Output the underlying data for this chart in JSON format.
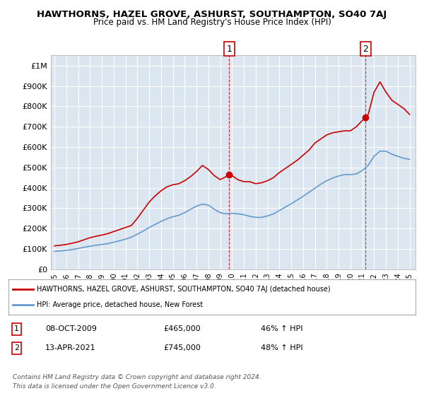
{
  "title": "HAWTHORNS, HAZEL GROVE, ASHURST, SOUTHAMPTON, SO40 7AJ",
  "subtitle": "Price paid vs. HM Land Registry's House Price Index (HPI)",
  "ylabel_ticks": [
    "£0",
    "£100K",
    "£200K",
    "£300K",
    "£400K",
    "£500K",
    "£600K",
    "£700K",
    "£800K",
    "£900K",
    "£1M"
  ],
  "ytick_values": [
    0,
    100000,
    200000,
    300000,
    400000,
    500000,
    600000,
    700000,
    800000,
    900000,
    1000000
  ],
  "ylim": [
    0,
    1050000
  ],
  "xlim_start": 1995,
  "xlim_end": 2025.5,
  "xticks": [
    1995,
    1996,
    1997,
    1998,
    1999,
    2000,
    2001,
    2002,
    2003,
    2004,
    2005,
    2006,
    2007,
    2008,
    2009,
    2010,
    2011,
    2012,
    2013,
    2014,
    2015,
    2016,
    2017,
    2018,
    2019,
    2020,
    2021,
    2022,
    2023,
    2024,
    2025
  ],
  "background_color": "#ffffff",
  "plot_bg_color": "#dce6f0",
  "grid_color": "#ffffff",
  "red_line_color": "#cc0000",
  "blue_line_color": "#6699cc",
  "marker1_x": 2009.77,
  "marker1_y": 465000,
  "marker1_label": "1",
  "marker1_date": "08-OCT-2009",
  "marker1_price": "£465,000",
  "marker1_hpi": "46% ↑ HPI",
  "marker2_x": 2021.28,
  "marker2_y": 745000,
  "marker2_label": "2",
  "marker2_date": "13-APR-2021",
  "marker2_price": "£745,000",
  "marker2_hpi": "48% ↑ HPI",
  "legend_red_label": "HAWTHORNS, HAZEL GROVE, ASHURST, SOUTHAMPTON, SO40 7AJ (detached house)",
  "legend_blue_label": "HPI: Average price, detached house, New Forest",
  "footer1": "Contains HM Land Registry data © Crown copyright and database right 2024.",
  "footer2": "This data is licensed under the Open Government Licence v3.0.",
  "red_x": [
    1995.0,
    1995.5,
    1996.0,
    1996.5,
    1997.0,
    1997.5,
    1998.0,
    1998.5,
    1999.0,
    1999.5,
    2000.0,
    2000.5,
    2001.0,
    2001.5,
    2002.0,
    2002.5,
    2003.0,
    2003.5,
    2004.0,
    2004.5,
    2005.0,
    2005.5,
    2006.0,
    2006.5,
    2007.0,
    2007.5,
    2008.0,
    2008.5,
    2009.0,
    2009.5,
    2009.77,
    2010.0,
    2010.5,
    2011.0,
    2011.5,
    2012.0,
    2012.5,
    2013.0,
    2013.5,
    2014.0,
    2014.5,
    2015.0,
    2015.5,
    2016.0,
    2016.5,
    2017.0,
    2017.5,
    2018.0,
    2018.5,
    2019.0,
    2019.5,
    2020.0,
    2020.5,
    2021.0,
    2021.28,
    2021.5,
    2022.0,
    2022.5,
    2023.0,
    2023.5,
    2024.0,
    2024.5,
    2025.0
  ],
  "red_y": [
    115000,
    118000,
    122000,
    128000,
    135000,
    145000,
    155000,
    162000,
    168000,
    175000,
    185000,
    195000,
    205000,
    215000,
    250000,
    290000,
    330000,
    360000,
    385000,
    405000,
    415000,
    420000,
    435000,
    455000,
    480000,
    510000,
    490000,
    460000,
    440000,
    455000,
    465000,
    460000,
    440000,
    430000,
    430000,
    420000,
    425000,
    435000,
    450000,
    475000,
    495000,
    515000,
    535000,
    560000,
    585000,
    620000,
    640000,
    660000,
    670000,
    675000,
    680000,
    680000,
    700000,
    730000,
    745000,
    760000,
    870000,
    920000,
    870000,
    830000,
    810000,
    790000,
    760000
  ],
  "blue_x": [
    1995.0,
    1995.5,
    1996.0,
    1996.5,
    1997.0,
    1997.5,
    1998.0,
    1998.5,
    1999.0,
    1999.5,
    2000.0,
    2000.5,
    2001.0,
    2001.5,
    2002.0,
    2002.5,
    2003.0,
    2003.5,
    2004.0,
    2004.5,
    2005.0,
    2005.5,
    2006.0,
    2006.5,
    2007.0,
    2007.5,
    2008.0,
    2008.5,
    2009.0,
    2009.5,
    2010.0,
    2010.5,
    2011.0,
    2011.5,
    2012.0,
    2012.5,
    2013.0,
    2013.5,
    2014.0,
    2014.5,
    2015.0,
    2015.5,
    2016.0,
    2016.5,
    2017.0,
    2017.5,
    2018.0,
    2018.5,
    2019.0,
    2019.5,
    2020.0,
    2020.5,
    2021.0,
    2021.5,
    2022.0,
    2022.5,
    2023.0,
    2023.5,
    2024.0,
    2024.5,
    2025.0
  ],
  "blue_y": [
    88000,
    90000,
    93000,
    97000,
    102000,
    108000,
    113000,
    118000,
    122000,
    126000,
    133000,
    140000,
    148000,
    158000,
    172000,
    188000,
    205000,
    220000,
    235000,
    248000,
    258000,
    265000,
    278000,
    295000,
    310000,
    320000,
    315000,
    295000,
    278000,
    272000,
    275000,
    272000,
    268000,
    260000,
    255000,
    255000,
    262000,
    272000,
    288000,
    305000,
    322000,
    340000,
    358000,
    378000,
    398000,
    418000,
    435000,
    448000,
    458000,
    465000,
    465000,
    468000,
    485000,
    510000,
    555000,
    580000,
    580000,
    565000,
    555000,
    545000,
    540000
  ]
}
